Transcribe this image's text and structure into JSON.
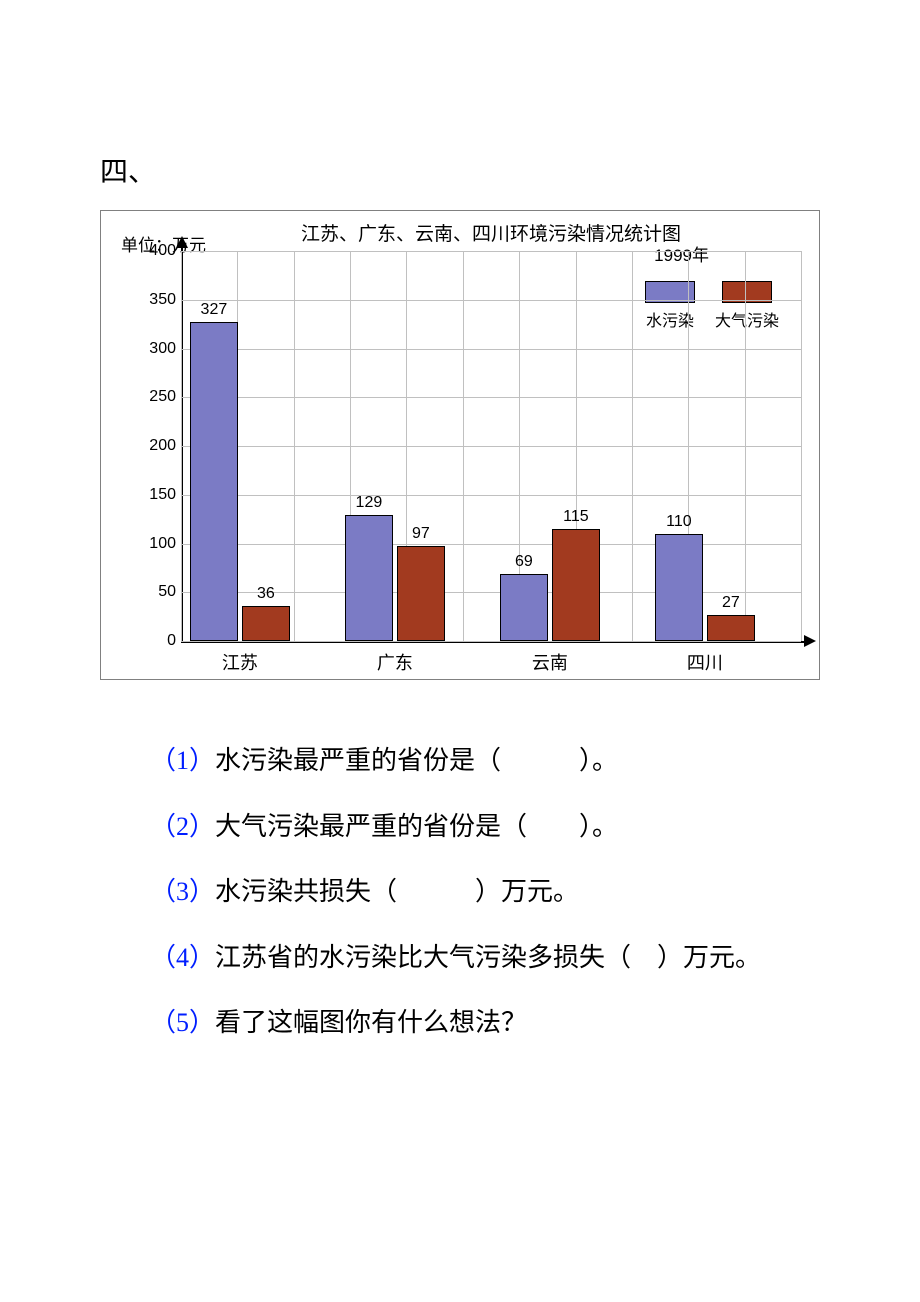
{
  "section_number": "四、",
  "chart": {
    "type": "bar",
    "title": "江苏、广东、云南、四川环境污染情况统计图",
    "y_unit": "单位：万元",
    "year": "1999年",
    "ylim": [
      0,
      400
    ],
    "ytick_step": 50,
    "yticks": [
      0,
      50,
      100,
      150,
      200,
      250,
      300,
      350,
      400
    ],
    "grid_color": "#c0c0c0",
    "background_color": "#ffffff",
    "categories": [
      "江苏",
      "广东",
      "云南",
      "四川"
    ],
    "series": [
      {
        "name": "水污染",
        "color": "#7b7bc5",
        "values": [
          327,
          129,
          69,
          110
        ]
      },
      {
        "name": "大气污染",
        "color": "#a23a1f",
        "values": [
          36,
          97,
          115,
          27
        ]
      }
    ],
    "bar_fontsize": 16,
    "title_fontsize": 19,
    "label_fontsize": 17
  },
  "questions": {
    "q1_num": "（1）",
    "q1_text_a": "水污染最严重的省份是（",
    "q1_blank": "　　　",
    "q1_text_b": "）。",
    "q2_num": "（2）",
    "q2_text_a": "大气污染最严重的省份是（",
    "q2_blank": "　　",
    "q2_text_b": "）。",
    "q3_num": "（3）",
    "q3_text_a": "水污染共损失（",
    "q3_blank": "　　　",
    "q3_text_b": "）万元。",
    "q4_num": "（4）",
    "q4_text_a": "江苏省的水污染比大气污染多损失（",
    "q4_blank": "　",
    "q4_text_b": "）万元。",
    "q5_num": "（5）",
    "q5_text": "看了这幅图你有什么想法？"
  }
}
